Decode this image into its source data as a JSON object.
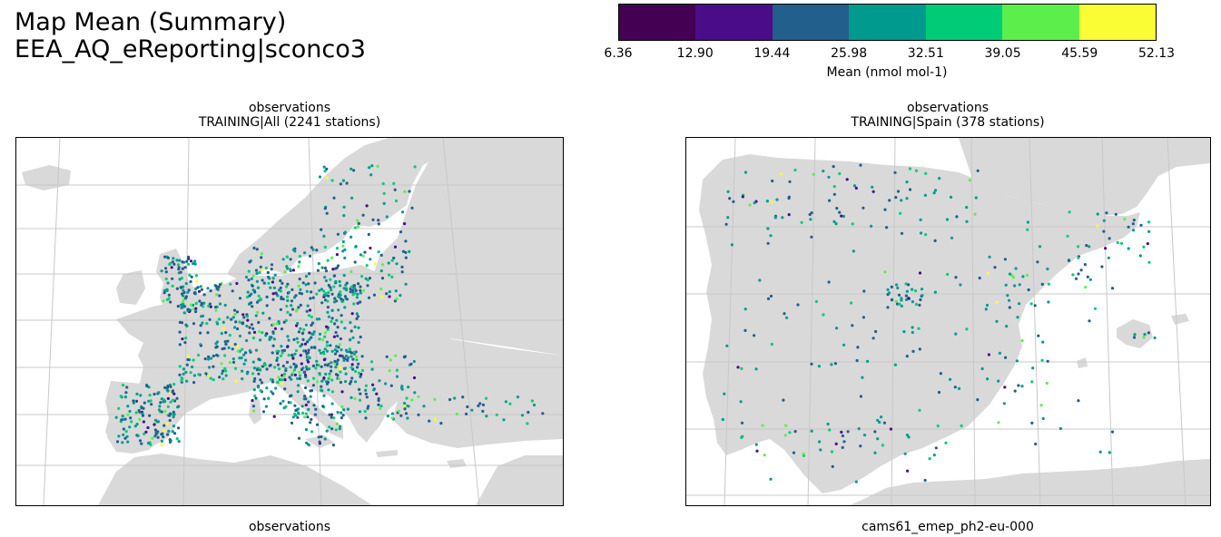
{
  "figure": {
    "title_line1": "Map Mean (Summary)",
    "title_line2": "EEA_AQ_eReporting|sconco3"
  },
  "colorbar": {
    "ticks": [
      "6.36",
      "12.90",
      "19.44",
      "25.98",
      "32.51",
      "39.05",
      "45.59",
      "52.13"
    ],
    "label": "Mean (nmol mol-1)",
    "colors": [
      "#440154",
      "#4b0c8a",
      "#225f8c",
      "#009b8e",
      "#00cc78",
      "#5cef4c",
      "#fafd34"
    ]
  },
  "panels": [
    {
      "title_line1": "observations",
      "title_line2": "TRAINING|All (2241 stations)",
      "footer": "observations",
      "region": "Europe"
    },
    {
      "title_line1": "observations",
      "title_line2": "TRAINING|Spain (378 stations)",
      "footer": "cams61_emep_ph2-eu-000",
      "region": "Iberian Peninsula"
    }
  ],
  "styles": {
    "land_color": "#d9d9d9",
    "grid_color": "#c8c8c8"
  }
}
